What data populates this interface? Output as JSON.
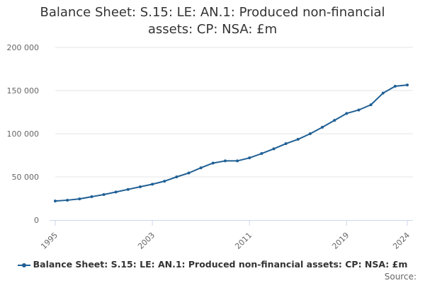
{
  "chart_data": {
    "type": "line",
    "title": "Balance Sheet: S.15: LE: AN.1: Produced non-financial assets: CP: NSA: £m",
    "x": [
      1995,
      1996,
      1997,
      1998,
      1999,
      2000,
      2001,
      2002,
      2003,
      2004,
      2005,
      2006,
      2007,
      2008,
      2009,
      2010,
      2011,
      2012,
      2013,
      2014,
      2015,
      2016,
      2017,
      2018,
      2019,
      2020,
      2021,
      2022,
      2023,
      2024
    ],
    "series": [
      {
        "name": "Balance Sheet: S.15: LE: AN.1: Produced non-financial assets: CP: NSA: £m",
        "values": [
          22000,
          23000,
          24500,
          27000,
          29500,
          32500,
          35500,
          38500,
          41500,
          45000,
          50000,
          54500,
          60500,
          66000,
          68500,
          68500,
          72000,
          77000,
          82500,
          88500,
          93500,
          100000,
          107500,
          115500,
          123500,
          127500,
          133500,
          147000,
          155000,
          156500
        ]
      }
    ],
    "x_ticks": [
      "1995",
      "2003",
      "2011",
      "2019",
      "2024"
    ],
    "y_ticks": [
      "0",
      "50 000",
      "100 000",
      "150 000",
      "200 000"
    ],
    "ylim": [
      0,
      200000
    ],
    "xlim": [
      1995,
      2024
    ],
    "grid": true,
    "legend_position": "bottom",
    "colors": {
      "series": "#206095",
      "grid": "#e6e6e6",
      "axis": "#ccd6eb"
    }
  },
  "source_label": "Source:"
}
